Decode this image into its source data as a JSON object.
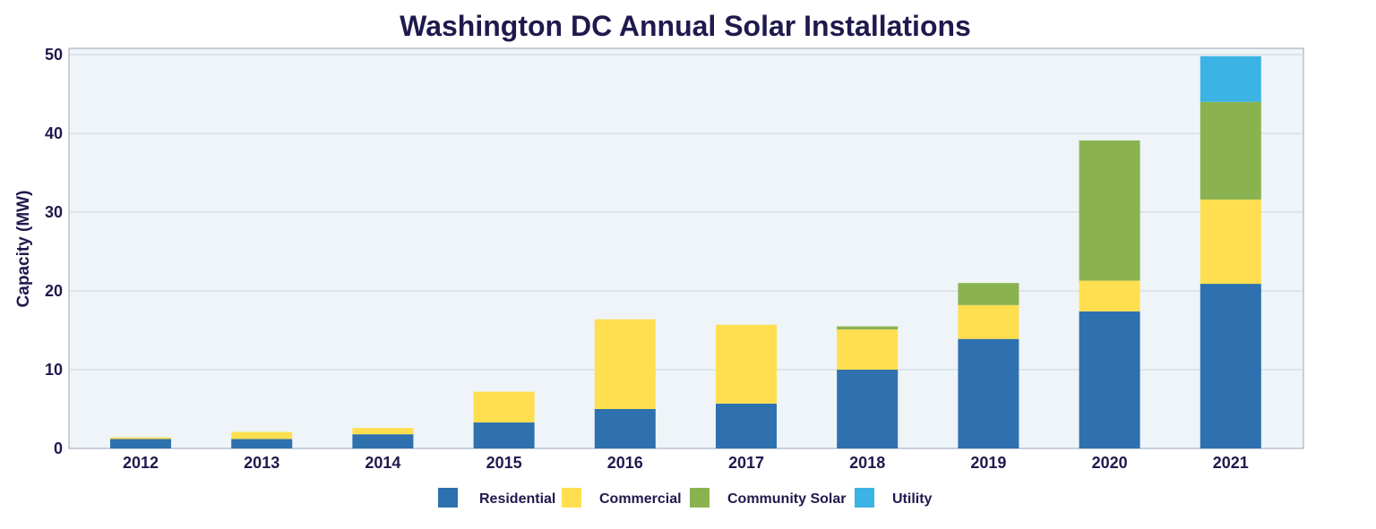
{
  "chart_data": {
    "type": "bar",
    "stacked": true,
    "title": "Washington DC Annual Solar Installations",
    "xlabel": "",
    "ylabel": "Capacity (MW)",
    "ylim": [
      0,
      50
    ],
    "yticks": [
      0,
      10,
      20,
      30,
      40,
      50
    ],
    "grid": true,
    "legend_position": "bottom",
    "categories": [
      "2012",
      "2013",
      "2014",
      "2015",
      "2016",
      "2017",
      "2018",
      "2019",
      "2020",
      "2021"
    ],
    "series": [
      {
        "name": "Residential",
        "color": "#2e71ae",
        "values": [
          1.2,
          1.2,
          1.8,
          3.3,
          5.0,
          5.7,
          10.0,
          13.9,
          17.4,
          20.9
        ]
      },
      {
        "name": "Commercial",
        "color": "#ffdf4f",
        "values": [
          0.2,
          0.9,
          0.8,
          3.9,
          11.4,
          10.0,
          5.1,
          4.3,
          3.9,
          10.7
        ]
      },
      {
        "name": "Community Solar",
        "color": "#8ab350",
        "values": [
          0,
          0,
          0,
          0,
          0,
          0,
          0.4,
          2.8,
          17.8,
          12.4
        ]
      },
      {
        "name": "Utility",
        "color": "#3bb3e5",
        "values": [
          0,
          0,
          0,
          0,
          0,
          0,
          0,
          0,
          0,
          5.8
        ]
      }
    ]
  }
}
